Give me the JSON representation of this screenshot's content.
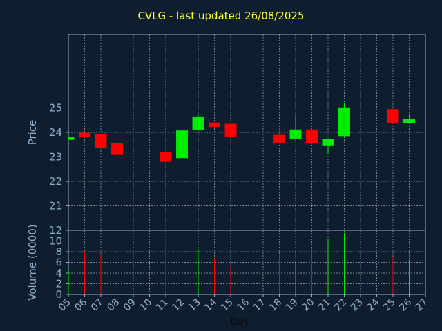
{
  "chart_data": {
    "type": "candlestick",
    "title": "CVLG - last updated 26/08/2025",
    "xlabel": "Day",
    "x_ticks": [
      "05",
      "06",
      "07",
      "08",
      "09",
      "10",
      "11",
      "12",
      "13",
      "14",
      "15",
      "16",
      "17",
      "18",
      "19",
      "20",
      "21",
      "22",
      "23",
      "24",
      "25",
      "26",
      "27"
    ],
    "price_panel": {
      "ylabel": "Price",
      "ylim": [
        20,
        28
      ],
      "y_ticks": [
        21,
        22,
        23,
        24,
        25
      ],
      "grid": true
    },
    "volume_panel": {
      "ylabel": "Volume (0000)",
      "ylim": [
        0,
        12
      ],
      "y_ticks": [
        0,
        2,
        4,
        6,
        8,
        10,
        12
      ],
      "grid": true
    },
    "candles": [
      {
        "day": 5,
        "open": 23.7,
        "close": 23.82,
        "high": 23.85,
        "low": 23.68,
        "volume": 4.5
      },
      {
        "day": 6,
        "open": 23.98,
        "close": 23.8,
        "high": 24.0,
        "low": 23.78,
        "volume": 8.0
      },
      {
        "day": 7,
        "open": 23.92,
        "close": 23.38,
        "high": 23.95,
        "low": 23.33,
        "volume": 7.5
      },
      {
        "day": 8,
        "open": 23.55,
        "close": 23.08,
        "high": 23.58,
        "low": 23.05,
        "volume": 6.5
      },
      {
        "day": 11,
        "open": 23.2,
        "close": 22.8,
        "high": 23.42,
        "low": 22.6,
        "volume": 10.0
      },
      {
        "day": 12,
        "open": 22.95,
        "close": 24.08,
        "high": 24.1,
        "low": 22.92,
        "volume": 11.0
      },
      {
        "day": 13,
        "open": 24.1,
        "close": 24.65,
        "high": 24.75,
        "low": 24.08,
        "volume": 8.5
      },
      {
        "day": 14,
        "open": 24.4,
        "close": 24.22,
        "high": 24.42,
        "low": 24.2,
        "volume": 6.8
      },
      {
        "day": 15,
        "open": 24.35,
        "close": 23.83,
        "high": 24.38,
        "low": 23.8,
        "volume": 5.2
      },
      {
        "day": 18,
        "open": 23.9,
        "close": 23.58,
        "high": 24.15,
        "low": 23.55,
        "volume": 7.3
      },
      {
        "day": 19,
        "open": 23.75,
        "close": 24.12,
        "high": 24.7,
        "low": 23.72,
        "volume": 6.2
      },
      {
        "day": 20,
        "open": 24.12,
        "close": 23.55,
        "high": 24.15,
        "low": 23.52,
        "volume": 8.8
      },
      {
        "day": 21,
        "open": 23.47,
        "close": 23.72,
        "high": 23.75,
        "low": 23.1,
        "volume": 10.5
      },
      {
        "day": 22,
        "open": 23.85,
        "close": 25.02,
        "high": 25.22,
        "low": 23.82,
        "volume": 11.5
      },
      {
        "day": 25,
        "open": 24.95,
        "close": 24.38,
        "high": 24.98,
        "low": 24.35,
        "volume": 7.0
      },
      {
        "day": 26,
        "open": 24.38,
        "close": 24.55,
        "high": 24.72,
        "low": 24.35,
        "volume": 6.5
      }
    ],
    "colors": {
      "background": "#0f1e2e",
      "frame": "#8fb0cc",
      "grid": "#cfd8e0",
      "tick_text": "#8fb0cc",
      "title": "#ffff33",
      "up": "#00ee00",
      "down": "#ff0000"
    }
  }
}
